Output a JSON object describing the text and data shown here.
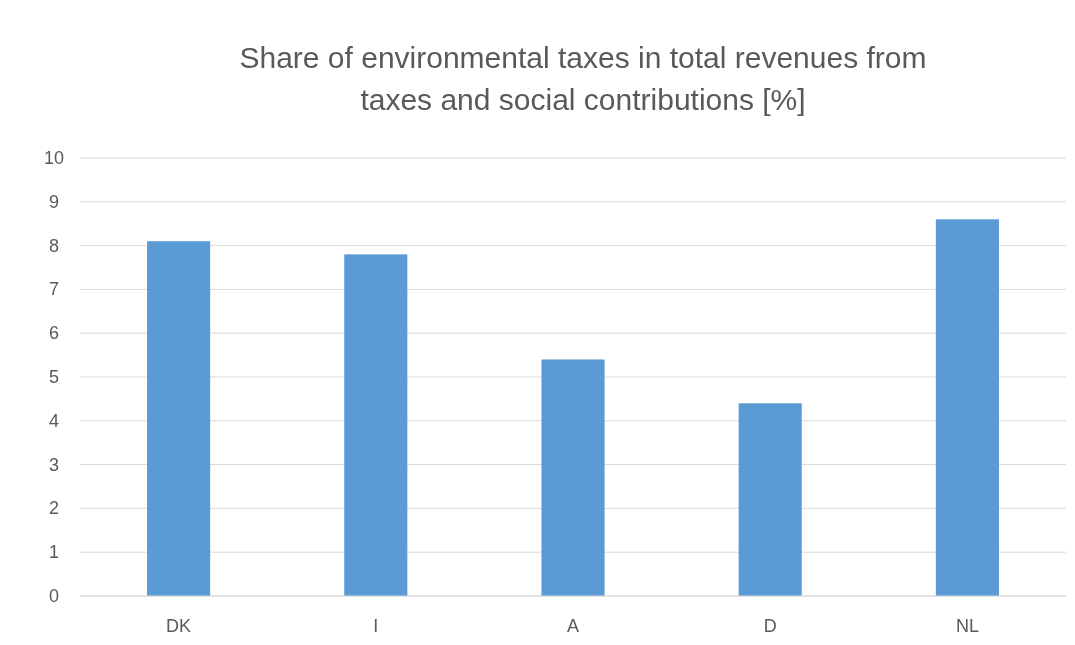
{
  "chart_data": {
    "type": "bar",
    "title": "Share of environmental taxes in total revenues from\ntaxes and social contributions [%]",
    "categories": [
      "DK",
      "I",
      "A",
      "D",
      "NL"
    ],
    "values": [
      8.1,
      7.8,
      5.4,
      4.4,
      8.6
    ],
    "color": "#5b9bd5",
    "ylim": [
      0,
      10
    ],
    "yticks": [
      0,
      1,
      2,
      3,
      4,
      5,
      6,
      7,
      8,
      9,
      10
    ],
    "grid": "y"
  }
}
